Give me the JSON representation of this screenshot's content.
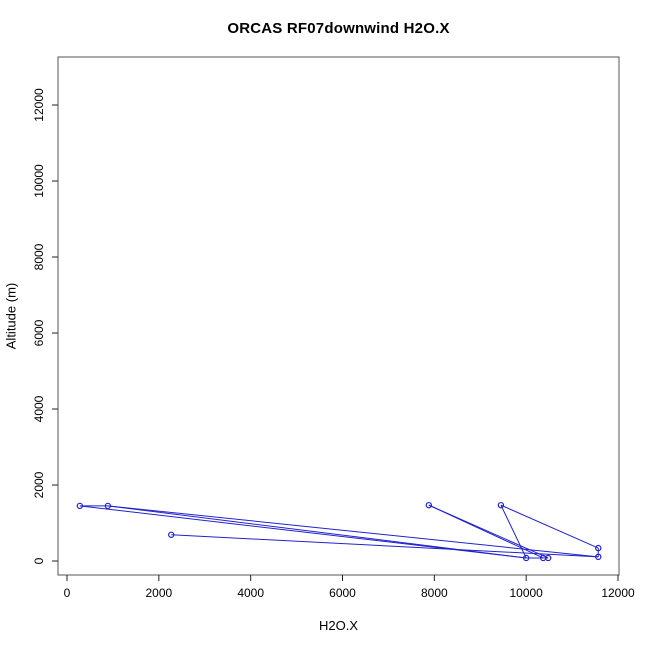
{
  "chart_data": {
    "type": "line",
    "title": "ORCAS RF07downwind H2O.X",
    "xlabel": "H2O.X",
    "ylabel": "Altitude (m)",
    "xlim": [
      0,
      12000
    ],
    "ylim": [
      0,
      12000
    ],
    "x_ticks": [
      0,
      2000,
      4000,
      6000,
      8000,
      10000,
      12000
    ],
    "y_ticks": [
      0,
      2000,
      4000,
      6000,
      8000,
      10000,
      12000
    ],
    "grid": false,
    "legend": null,
    "marker": "open-circle",
    "series_color": "#2222cc",
    "frame_color": "#555555",
    "tick_color": "#222222",
    "points": [
      {
        "x": 280,
        "y": 1450
      },
      {
        "x": 890,
        "y": 1450
      },
      {
        "x": 2270,
        "y": 690
      },
      {
        "x": 7880,
        "y": 1470
      },
      {
        "x": 9450,
        "y": 1470
      },
      {
        "x": 10000,
        "y": 80
      },
      {
        "x": 10370,
        "y": 80
      },
      {
        "x": 10480,
        "y": 80
      },
      {
        "x": 11570,
        "y": 340
      },
      {
        "x": 11570,
        "y": 110
      }
    ],
    "segments": [
      [
        0,
        1
      ],
      [
        0,
        5
      ],
      [
        1,
        5
      ],
      [
        1,
        9
      ],
      [
        2,
        9
      ],
      [
        3,
        6
      ],
      [
        3,
        7
      ],
      [
        4,
        5
      ],
      [
        4,
        8
      ],
      [
        8,
        9
      ],
      [
        5,
        6
      ],
      [
        6,
        7
      ]
    ]
  }
}
